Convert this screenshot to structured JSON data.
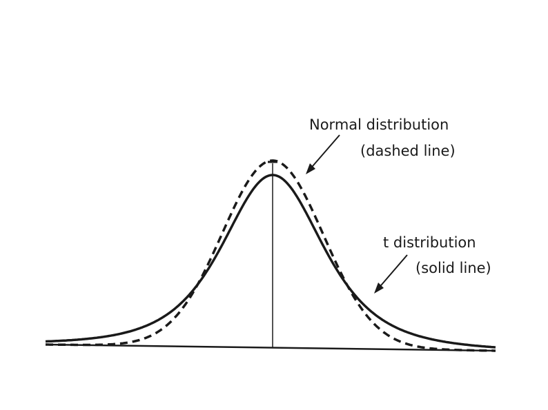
{
  "labels": {
    "normal_line1": "Normal distribution",
    "normal_line2": "(dashed line)",
    "t_line1": "t distribution",
    "t_line2": "(solid line)"
  },
  "curves": {
    "normal": {
      "type": "normal",
      "style": "dashed"
    },
    "t": {
      "type": "t",
      "style": "solid"
    }
  },
  "colors": {
    "ink": "#1a1a1a",
    "background": "#ffffff"
  }
}
